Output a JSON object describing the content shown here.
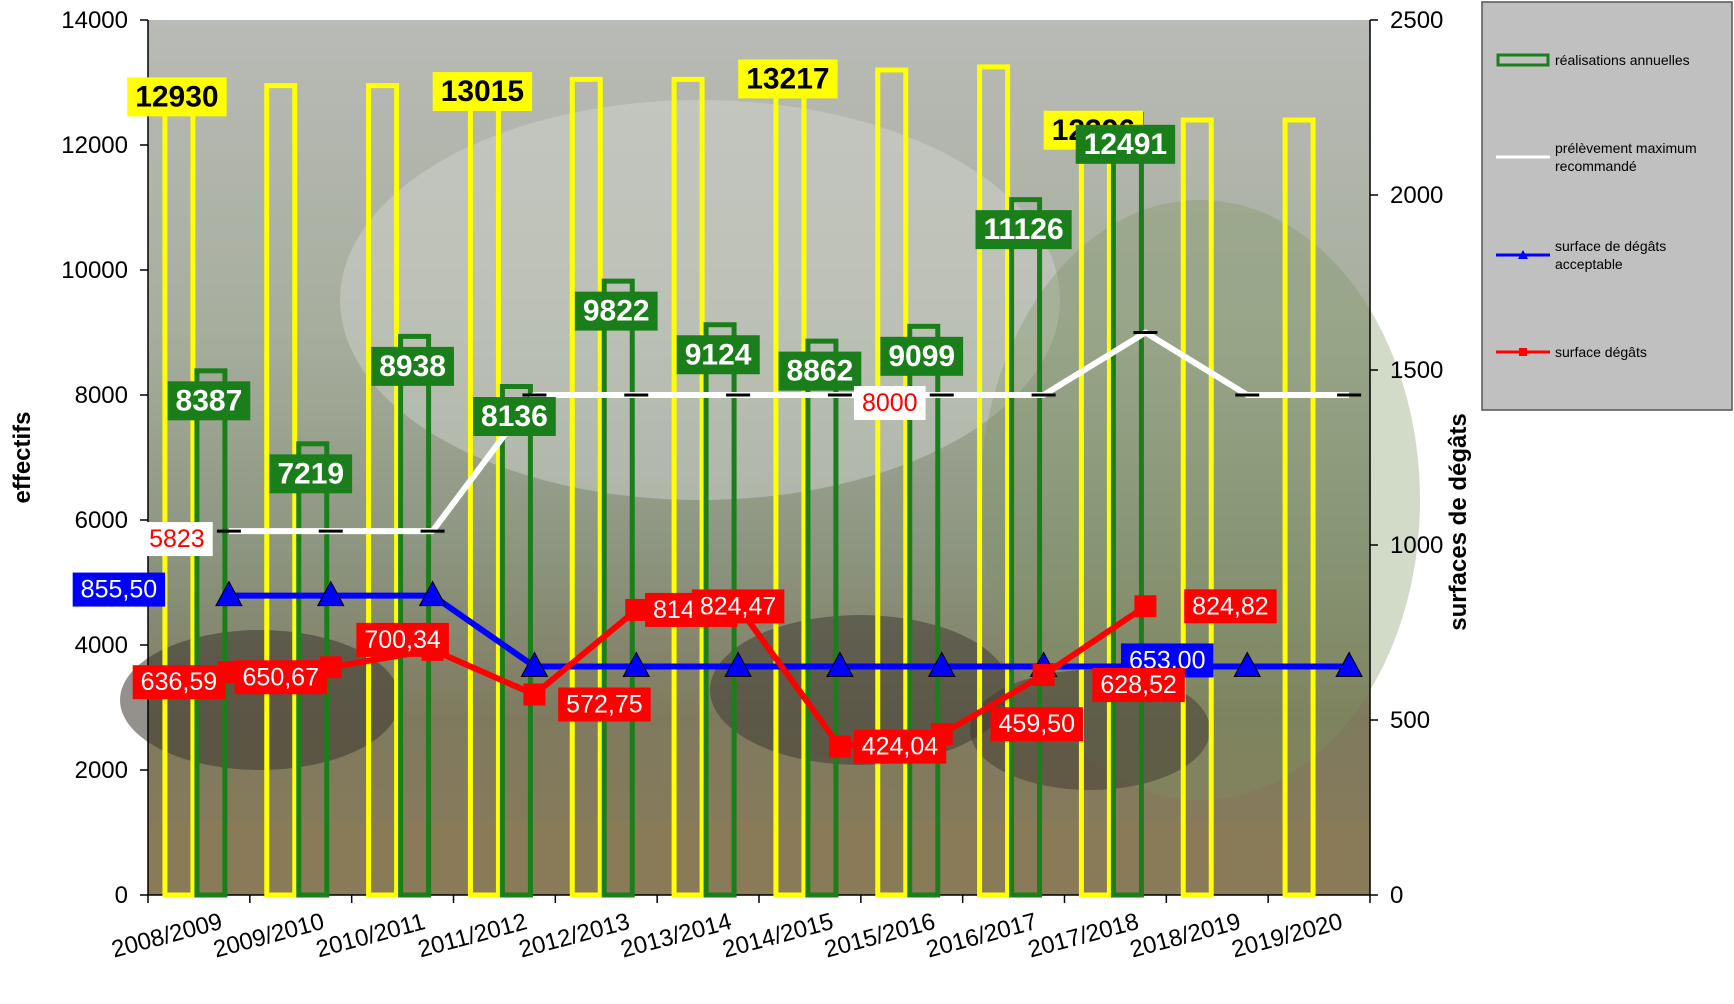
{
  "chart_data": {
    "type": "bar",
    "title": "",
    "categories": [
      "2008/2009",
      "2009/2010",
      "2010/2011",
      "2011/2012",
      "2012/2013",
      "2013/2014",
      "2014/2015",
      "2015/2016",
      "2016/2017",
      "2017/2018",
      "2018/2019",
      "2019/2020"
    ],
    "ylabel": "effectifs",
    "y2label": "surfaces de dégâts",
    "ylim": [
      0,
      14000
    ],
    "y2lim": [
      0,
      2500
    ],
    "yticks": [
      "0",
      "2000",
      "4000",
      "6000",
      "8000",
      "10000",
      "12000",
      "14000"
    ],
    "y2ticks": [
      "0",
      "500",
      "1000",
      "1500",
      "2000",
      "2500"
    ],
    "legend_position": "top-right",
    "colors": {
      "yellow_bar": "#ffff00",
      "green_bar": "#1a7f1a",
      "white_line": "#ffffff",
      "blue_line": "#0000ff",
      "red_line": "#ff0000",
      "legend_bg": "#c0c0c0"
    },
    "series": [
      {
        "key": "plan",
        "axis": "left",
        "kind": "bar",
        "values": [
          12930,
          12950,
          12950,
          13015,
          13050,
          13050,
          13217,
          13200,
          13250,
          12396,
          12400,
          12400
        ],
        "labels": [
          "12930",
          "",
          "",
          "13015",
          "",
          "",
          "13217",
          "",
          "",
          "12396",
          "",
          ""
        ]
      },
      {
        "key": "realisations",
        "name": "réalisations annuelles",
        "axis": "left",
        "kind": "bar",
        "values": [
          8387,
          7219,
          8938,
          8136,
          9822,
          9124,
          8862,
          9099,
          11126,
          12491,
          null,
          null
        ],
        "labels": [
          "8387",
          "7219",
          "8938",
          "8136",
          "9822",
          "9124",
          "8862",
          "9099",
          "11126",
          "12491",
          "",
          ""
        ]
      },
      {
        "key": "prelevement",
        "name": "prélèvement maximum recommandé",
        "axis": "left",
        "kind": "line",
        "values": [
          5823,
          5823,
          5823,
          8000,
          8000,
          8000,
          8000,
          8000,
          8000,
          9000,
          8000,
          8000
        ],
        "labels": [
          "5823",
          "",
          "",
          "",
          "",
          "",
          "",
          "8000",
          "",
          "",
          "",
          ""
        ]
      },
      {
        "key": "acceptable",
        "name": "surface de dégâts acceptable",
        "axis": "right",
        "kind": "line",
        "values": [
          855.5,
          855.5,
          855.5,
          653,
          653,
          653,
          653,
          653,
          653,
          653,
          653,
          653
        ],
        "labels": [
          "855,50",
          "",
          "",
          "",
          "",
          "",
          "",
          "",
          "",
          "",
          "653,00",
          ""
        ]
      },
      {
        "key": "degats",
        "name": "surface dégâts",
        "axis": "right",
        "kind": "line",
        "values": [
          636.59,
          650.67,
          700.34,
          572.75,
          814.49,
          824.47,
          424.04,
          459.5,
          628.52,
          824.82,
          null,
          null
        ],
        "labels": [
          "636,59",
          "650,67",
          "700,34",
          "572,75",
          "814,49",
          "824,47",
          "424,04",
          "459,50",
          "628,52",
          "824,82",
          "",
          ""
        ]
      }
    ],
    "legend": [
      {
        "key": "realisations",
        "text": "réalisations annuelles"
      },
      {
        "key": "prelevement",
        "text": "prélèvement maximum recommandé"
      },
      {
        "key": "acceptable",
        "text": "surface de dégâts acceptable"
      },
      {
        "key": "degats",
        "text": "surface dégâts"
      }
    ]
  }
}
